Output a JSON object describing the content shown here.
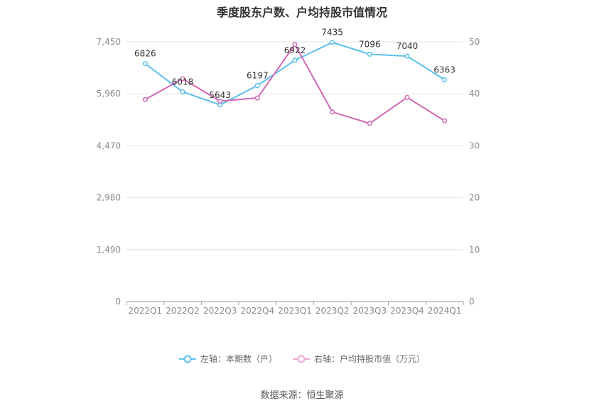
{
  "title": "季度股东户数、户均持股市值情况",
  "source": "数据来源：恒生聚源",
  "colors": {
    "left_series": "#5bc0eb",
    "right_series": "#d068b4"
  },
  "chart_data": {
    "type": "line",
    "title": "季度股东户数、户均持股市值情况",
    "categories": [
      "2022Q1",
      "2022Q2",
      "2022Q3",
      "2022Q4",
      "2023Q1",
      "2023Q2",
      "2023Q3",
      "2023Q4",
      "2024Q1"
    ],
    "y_left": {
      "ticks": [
        "0",
        "1,490",
        "2,980",
        "4,470",
        "5,960",
        "7,450"
      ],
      "range": [
        0,
        7450
      ]
    },
    "y_right": {
      "ticks": [
        "0",
        "10",
        "20",
        "30",
        "40",
        "50"
      ],
      "range": [
        0,
        50
      ]
    },
    "grid": true,
    "legend_position": "bottom",
    "series": [
      {
        "name": "左轴：本期数（户）",
        "axis": "left",
        "values": [
          6826,
          6018,
          5643,
          6197,
          6922,
          7435,
          7096,
          7040,
          6363
        ],
        "labels": [
          "6826",
          "6018",
          "5643",
          "6197",
          "6922",
          "7435",
          "7096",
          "7040",
          "6363"
        ]
      },
      {
        "name": "右轴：户均持股市值（万元）",
        "axis": "right",
        "values": [
          38.9,
          42.9,
          38.6,
          39.2,
          49.5,
          36.5,
          34.3,
          39.3,
          34.8
        ]
      }
    ]
  }
}
